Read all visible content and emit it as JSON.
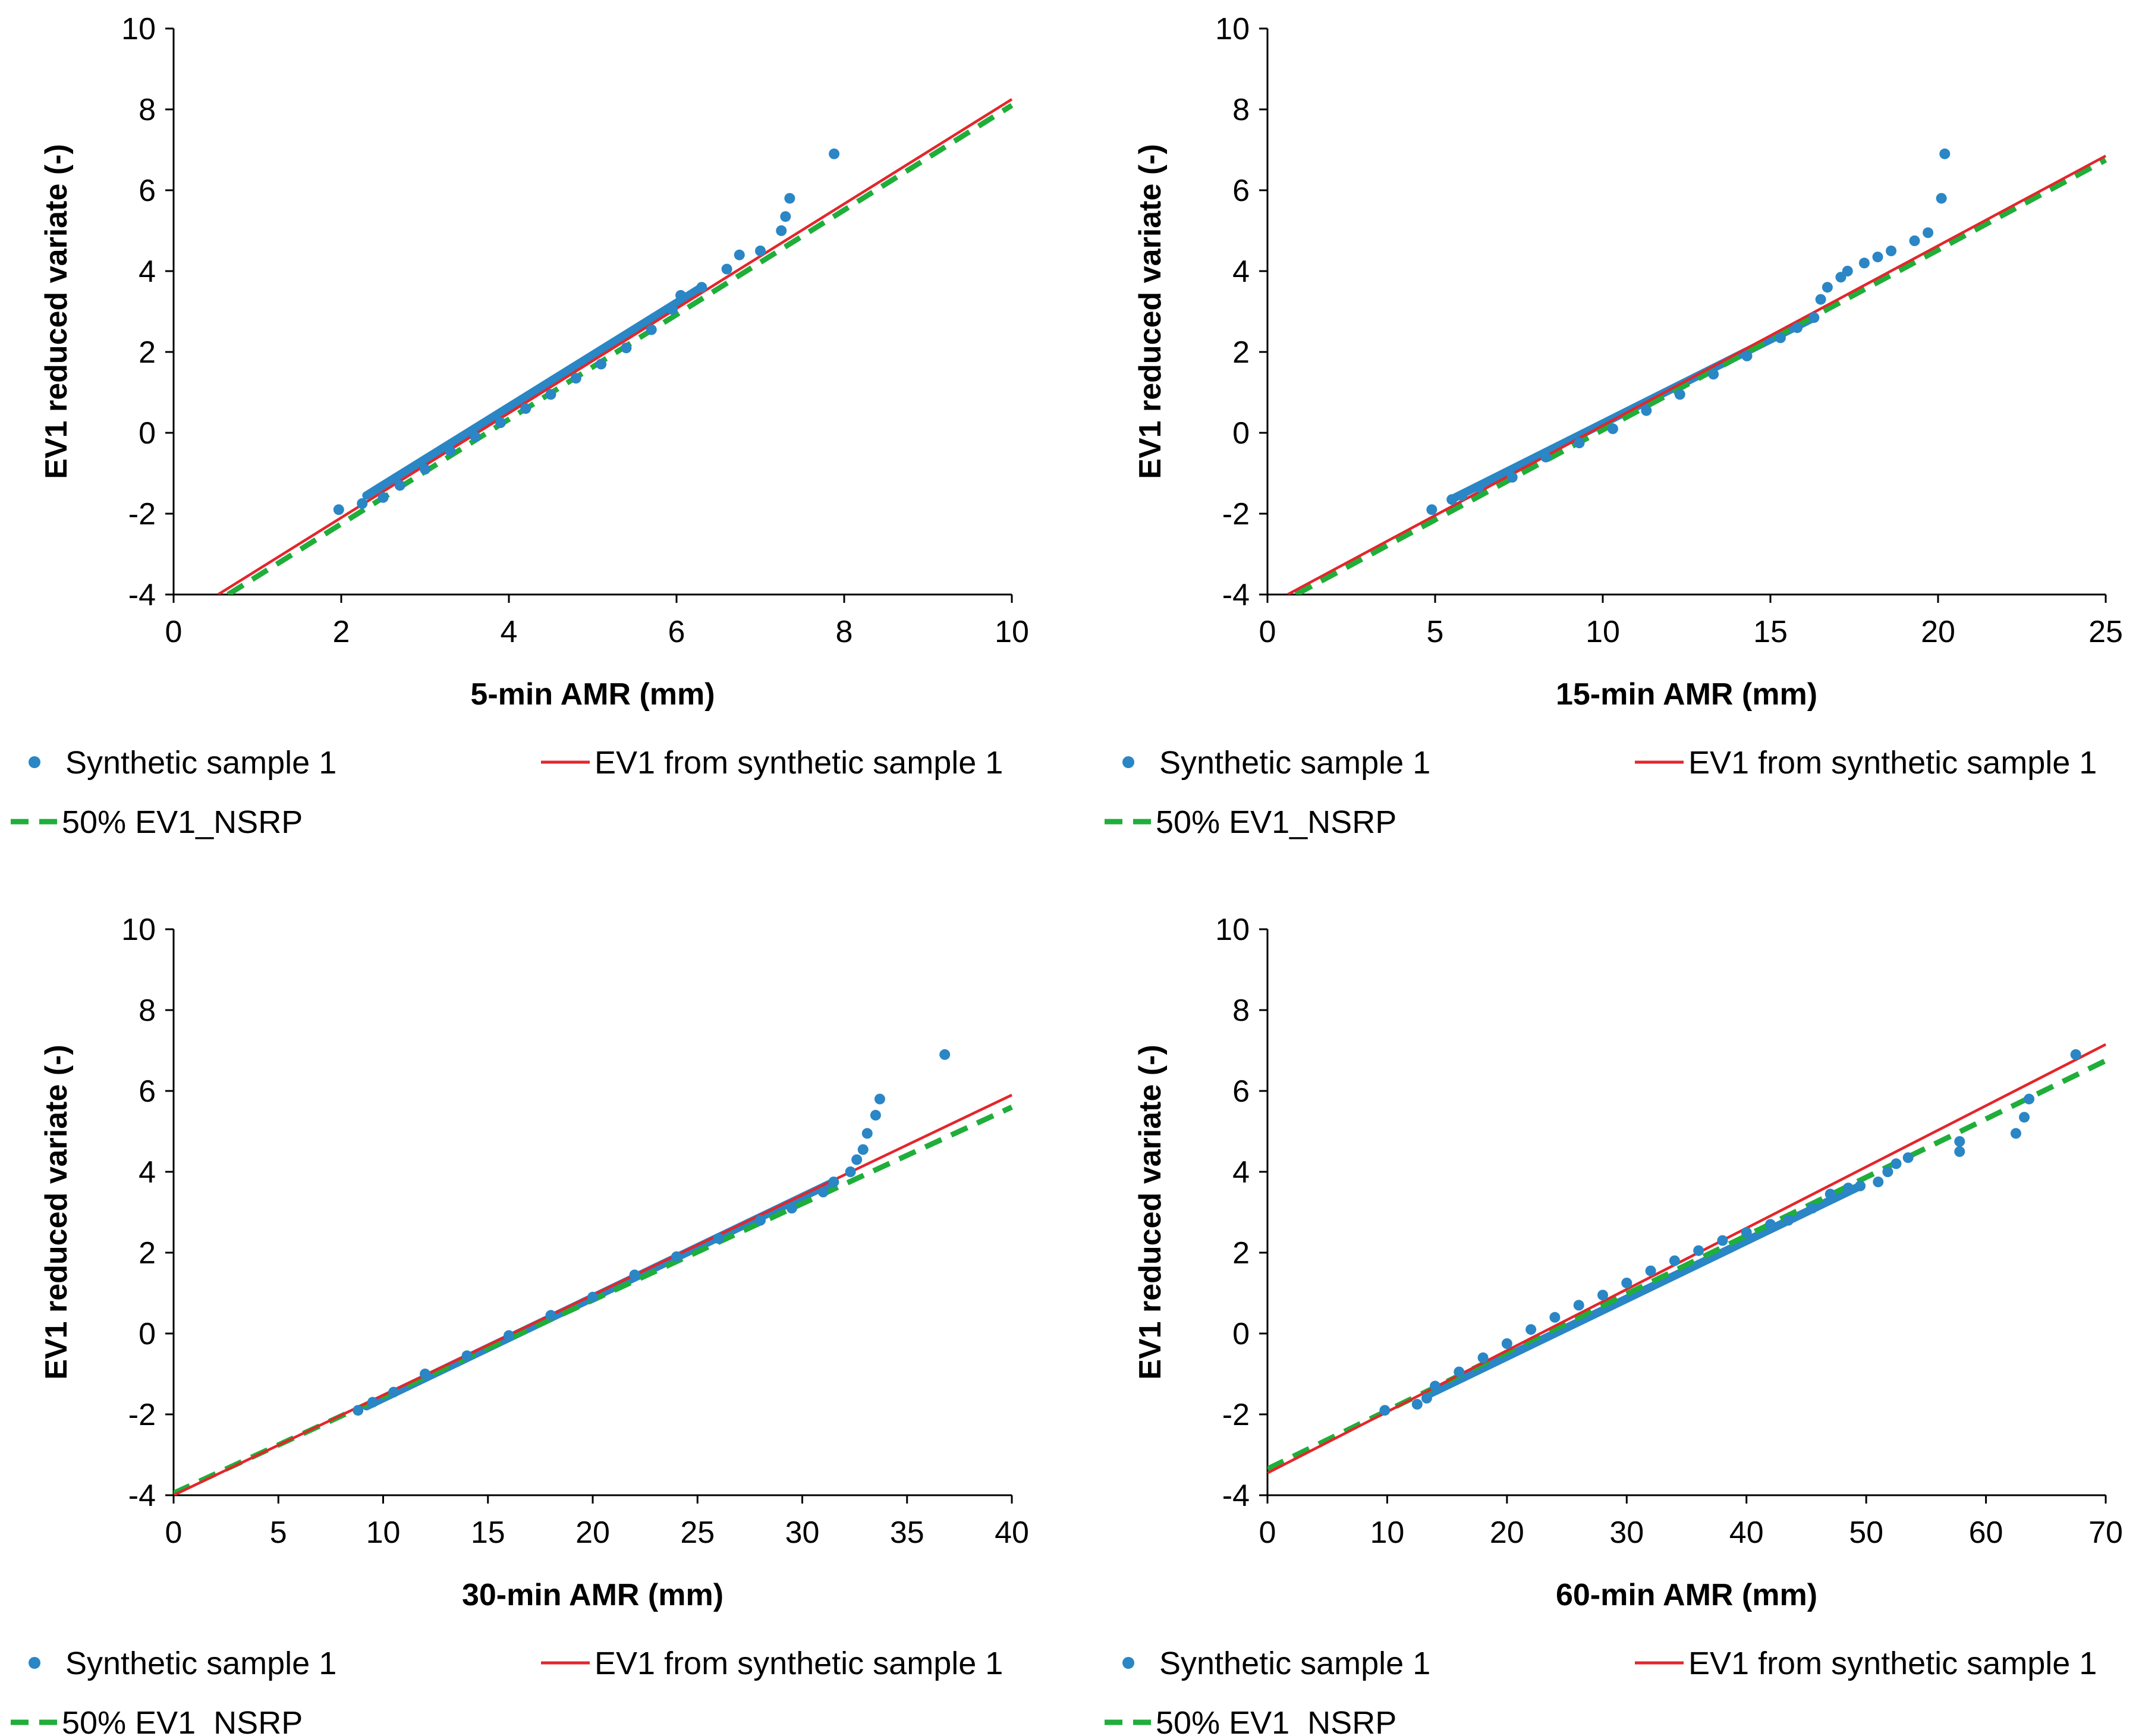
{
  "figure": {
    "legend_labels": [
      "Synthetic sample 1",
      "EV1 from synthetic sample 1",
      "50% EV1_NSRP"
    ]
  },
  "colors": {
    "synthetic": "#2a86c5",
    "ev1_fit": "#e3262b",
    "nsrp": "#1fae3a",
    "axis": "#000000"
  },
  "chart_data": [
    {
      "type": "scatter",
      "panel": "5-min",
      "xlabel": "5-min AMR (mm)",
      "ylabel": "EV1 reduced variate (-)",
      "xlim": [
        0,
        10
      ],
      "ylim": [
        -4,
        10
      ],
      "xticks": [
        "0",
        "2",
        "4",
        "6",
        "8",
        "10"
      ],
      "yticks": [
        "-4",
        "-2",
        "0",
        "2",
        "4",
        "6",
        "8",
        "10"
      ],
      "xtick_values": [
        0,
        2,
        4,
        6,
        8,
        10
      ],
      "ytick_values": [
        -4,
        -2,
        0,
        2,
        4,
        6,
        8,
        10
      ],
      "series": [
        {
          "name": "Synthetic sample 1",
          "kind": "scatter",
          "points": [
            [
              1.97,
              -1.9
            ],
            [
              2.25,
              -1.75
            ],
            [
              2.5,
              -1.6
            ],
            [
              2.7,
              -1.3
            ],
            [
              3.0,
              -0.9
            ],
            [
              3.3,
              -0.45
            ],
            [
              3.6,
              -0.1
            ],
            [
              3.9,
              0.25
            ],
            [
              4.2,
              0.6
            ],
            [
              4.5,
              0.95
            ],
            [
              4.8,
              1.35
            ],
            [
              5.1,
              1.7
            ],
            [
              5.4,
              2.1
            ],
            [
              5.7,
              2.55
            ],
            [
              5.95,
              3.05
            ],
            [
              6.05,
              3.4
            ],
            [
              6.3,
              3.6
            ],
            [
              6.6,
              4.05
            ],
            [
              6.75,
              4.4
            ],
            [
              7.0,
              4.5
            ],
            [
              7.25,
              5.0
            ],
            [
              7.3,
              5.35
            ],
            [
              7.35,
              5.8
            ],
            [
              7.88,
              6.9
            ]
          ],
          "line_from": [
            2.3,
            -1.55
          ],
          "line_to": [
            6.3,
            3.6
          ]
        },
        {
          "name": "EV1 from synthetic sample 1",
          "kind": "line",
          "points": [
            [
              0.53,
              -4.0
            ],
            [
              10.0,
              8.25
            ]
          ]
        },
        {
          "name": "50% EV1_NSRP",
          "kind": "dashed",
          "points": [
            [
              0.65,
              -4.0
            ],
            [
              10.0,
              8.1
            ]
          ]
        }
      ]
    },
    {
      "type": "scatter",
      "panel": "15-min",
      "xlabel": "15-min AMR (mm)",
      "ylabel": "EV1 reduced variate (-)",
      "xlim": [
        0,
        25
      ],
      "ylim": [
        -4,
        10
      ],
      "xticks": [
        "0",
        "5",
        "10",
        "15",
        "20",
        "25"
      ],
      "yticks": [
        "-4",
        "-2",
        "0",
        "2",
        "4",
        "6",
        "8",
        "10"
      ],
      "xtick_values": [
        0,
        5,
        10,
        15,
        20,
        25
      ],
      "ytick_values": [
        -4,
        -2,
        0,
        2,
        4,
        6,
        8,
        10
      ],
      "series": [
        {
          "name": "Synthetic sample 1",
          "kind": "scatter",
          "points": [
            [
              4.9,
              -1.9
            ],
            [
              5.5,
              -1.65
            ],
            [
              5.8,
              -1.55
            ],
            [
              6.3,
              -1.35
            ],
            [
              7.3,
              -1.1
            ],
            [
              8.3,
              -0.6
            ],
            [
              9.3,
              -0.25
            ],
            [
              10.3,
              0.1
            ],
            [
              11.3,
              0.55
            ],
            [
              12.3,
              0.95
            ],
            [
              13.3,
              1.45
            ],
            [
              14.3,
              1.9
            ],
            [
              15.3,
              2.35
            ],
            [
              15.8,
              2.6
            ],
            [
              16.3,
              2.85
            ],
            [
              16.5,
              3.3
            ],
            [
              16.7,
              3.6
            ],
            [
              17.1,
              3.85
            ],
            [
              17.3,
              4.0
            ],
            [
              17.8,
              4.2
            ],
            [
              18.2,
              4.35
            ],
            [
              18.6,
              4.5
            ],
            [
              19.3,
              4.75
            ],
            [
              19.7,
              4.95
            ],
            [
              20.1,
              5.8
            ],
            [
              20.2,
              6.9
            ]
          ],
          "line_from": [
            5.6,
            -1.6
          ],
          "line_to": [
            16.3,
            2.85
          ]
        },
        {
          "name": "EV1 from synthetic sample 1",
          "kind": "line",
          "points": [
            [
              0.6,
              -4.0
            ],
            [
              25.0,
              6.85
            ]
          ]
        },
        {
          "name": "50% EV1_NSRP",
          "kind": "dashed",
          "points": [
            [
              0.85,
              -4.0
            ],
            [
              25.0,
              6.75
            ]
          ]
        }
      ]
    },
    {
      "type": "scatter",
      "panel": "30-min",
      "xlabel": "30-min AMR (mm)",
      "ylabel": "EV1 reduced variate (-)",
      "xlim": [
        0,
        40
      ],
      "ylim": [
        -4,
        10
      ],
      "xticks": [
        "0",
        "5",
        "10",
        "15",
        "20",
        "25",
        "30",
        "35",
        "40"
      ],
      "yticks": [
        "-4",
        "-2",
        "0",
        "2",
        "4",
        "6",
        "8",
        "10"
      ],
      "xtick_values": [
        0,
        5,
        10,
        15,
        20,
        25,
        30,
        35,
        40
      ],
      "ytick_values": [
        -4,
        -2,
        0,
        2,
        4,
        6,
        8,
        10
      ],
      "series": [
        {
          "name": "Synthetic sample 1",
          "kind": "scatter",
          "points": [
            [
              8.8,
              -1.9
            ],
            [
              9.5,
              -1.7
            ],
            [
              10.5,
              -1.45
            ],
            [
              12.0,
              -1.0
            ],
            [
              14.0,
              -0.55
            ],
            [
              16.0,
              -0.05
            ],
            [
              18.0,
              0.45
            ],
            [
              20.0,
              0.9
            ],
            [
              22.0,
              1.45
            ],
            [
              24.0,
              1.9
            ],
            [
              26.0,
              2.35
            ],
            [
              28.0,
              2.8
            ],
            [
              29.5,
              3.1
            ],
            [
              31.0,
              3.5
            ],
            [
              31.5,
              3.75
            ],
            [
              32.3,
              4.0
            ],
            [
              32.6,
              4.3
            ],
            [
              32.9,
              4.55
            ],
            [
              33.1,
              4.95
            ],
            [
              33.5,
              5.4
            ],
            [
              33.7,
              5.8
            ],
            [
              36.8,
              6.9
            ]
          ],
          "line_from": [
            9.2,
            -1.8
          ],
          "line_to": [
            31.5,
            3.75
          ]
        },
        {
          "name": "EV1 from synthetic sample 1",
          "kind": "line",
          "points": [
            [
              0.0,
              -4.0
            ],
            [
              40.0,
              5.9
            ]
          ]
        },
        {
          "name": "50% EV1_NSRP",
          "kind": "dashed",
          "points": [
            [
              0.0,
              -3.95
            ],
            [
              40.0,
              5.6
            ]
          ]
        }
      ]
    },
    {
      "type": "scatter",
      "panel": "60-min",
      "xlabel": "60-min AMR (mm)",
      "ylabel": "EV1 reduced variate (-)",
      "xlim": [
        0,
        70
      ],
      "ylim": [
        -4,
        10
      ],
      "xticks": [
        "0",
        "10",
        "20",
        "30",
        "40",
        "50",
        "60",
        "70"
      ],
      "yticks": [
        "-4",
        "-2",
        "0",
        "2",
        "4",
        "6",
        "8",
        "10"
      ],
      "xtick_values": [
        0,
        10,
        20,
        30,
        40,
        50,
        60,
        70
      ],
      "ytick_values": [
        -4,
        -2,
        0,
        2,
        4,
        6,
        8,
        10
      ],
      "series": [
        {
          "name": "Synthetic sample 1",
          "kind": "scatter",
          "points": [
            [
              9.8,
              -1.9
            ],
            [
              12.5,
              -1.75
            ],
            [
              13.3,
              -1.6
            ],
            [
              14.0,
              -1.3
            ],
            [
              16.0,
              -0.95
            ],
            [
              18.0,
              -0.6
            ],
            [
              20.0,
              -0.25
            ],
            [
              22.0,
              0.1
            ],
            [
              24.0,
              0.4
            ],
            [
              26.0,
              0.7
            ],
            [
              28.0,
              0.95
            ],
            [
              30.0,
              1.25
            ],
            [
              32.0,
              1.55
            ],
            [
              34.0,
              1.8
            ],
            [
              36.0,
              2.05
            ],
            [
              38.0,
              2.3
            ],
            [
              40.0,
              2.5
            ],
            [
              42.0,
              2.7
            ],
            [
              43.5,
              2.8
            ],
            [
              45.5,
              3.1
            ],
            [
              47.0,
              3.45
            ],
            [
              48.5,
              3.6
            ],
            [
              49.5,
              3.65
            ],
            [
              51.0,
              3.75
            ],
            [
              51.8,
              4.0
            ],
            [
              52.5,
              4.2
            ],
            [
              53.5,
              4.35
            ],
            [
              57.8,
              4.5
            ],
            [
              57.8,
              4.75
            ],
            [
              62.5,
              4.95
            ],
            [
              63.2,
              5.35
            ],
            [
              63.6,
              5.8
            ],
            [
              67.5,
              6.9
            ]
          ],
          "line_from": [
            13.5,
            -1.5
          ],
          "line_to": [
            49.5,
            3.65
          ]
        },
        {
          "name": "EV1 from synthetic sample 1",
          "kind": "line",
          "points": [
            [
              0.0,
              -3.45
            ],
            [
              70.0,
              7.15
            ]
          ]
        },
        {
          "name": "50% EV1_NSRP",
          "kind": "dashed",
          "points": [
            [
              0.0,
              -3.35
            ],
            [
              70.0,
              6.75
            ]
          ]
        }
      ]
    }
  ]
}
